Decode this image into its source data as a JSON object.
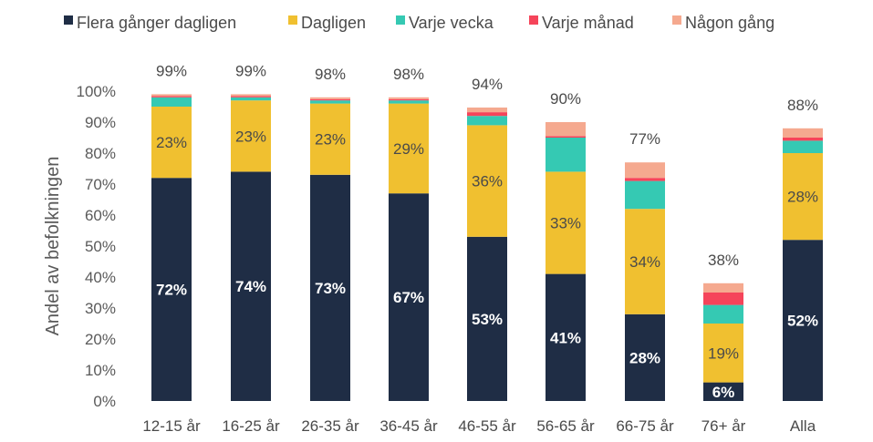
{
  "chart_data": {
    "type": "bar",
    "stacked": true,
    "ylabel": "Andel av befolkningen",
    "ylim": [
      0,
      100
    ],
    "y_ticks": [
      "0%",
      "10%",
      "20%",
      "30%",
      "40%",
      "50%",
      "60%",
      "70%",
      "80%",
      "90%",
      "100%"
    ],
    "categories": [
      "12-15 år",
      "16-25 år",
      "26-35 år",
      "36-45 år",
      "46-55 år",
      "56-65 år",
      "66-75 år",
      "76+ år",
      "Alla"
    ],
    "totals": [
      "99%",
      "99%",
      "98%",
      "98%",
      "94%",
      "90%",
      "77%",
      "38%",
      "88%"
    ],
    "legend_position": "top",
    "series": [
      {
        "name": "Flera gånger dagligen",
        "color": "#1f2d45",
        "values": [
          72,
          74,
          73,
          67,
          53,
          41,
          28,
          6,
          52
        ],
        "labels": [
          "72%",
          "74%",
          "73%",
          "67%",
          "53%",
          "41%",
          "28%",
          "6%",
          "52%"
        ],
        "label_color": "#ffffff",
        "label_bold": true
      },
      {
        "name": "Dagligen",
        "color": "#f0c030",
        "values": [
          23,
          23,
          23,
          29,
          36,
          33,
          34,
          19,
          28
        ],
        "labels": [
          "23%",
          "23%",
          "23%",
          "29%",
          "36%",
          "33%",
          "34%",
          "19%",
          "28%"
        ],
        "label_color": "#4a4a4a",
        "label_bold": false
      },
      {
        "name": "Varje vecka",
        "color": "#35c9b3",
        "values": [
          3,
          1,
          1,
          1,
          3,
          11,
          9,
          6,
          4
        ],
        "labels": [],
        "label_color": "",
        "label_bold": false
      },
      {
        "name": "Varje månad",
        "color": "#f5445a",
        "values": [
          0.4,
          0.4,
          0.4,
          0.4,
          1.2,
          0.5,
          1,
          4,
          1
        ],
        "labels": [],
        "label_color": "",
        "label_bold": false
      },
      {
        "name": "Någon gång",
        "color": "#f5a98f",
        "values": [
          0.6,
          0.6,
          0.6,
          0.6,
          1.5,
          4.5,
          5,
          3,
          3
        ],
        "labels": [],
        "label_color": "",
        "label_bold": false
      }
    ]
  }
}
